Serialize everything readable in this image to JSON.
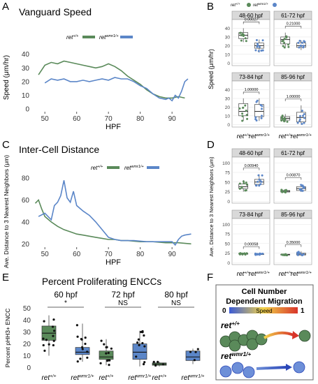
{
  "colors": {
    "wt": "#5a8a5a",
    "mut": "#5b86c8",
    "strip": "#d9d9d9",
    "grid": "#e6e6e6"
  },
  "panels": {
    "A": {
      "letter": "A",
      "title": "Vanguard Speed"
    },
    "B": {
      "letter": "B"
    },
    "C": {
      "letter": "C",
      "title": "Inter-Cell Distance"
    },
    "D": {
      "letter": "D"
    },
    "E": {
      "letter": "E",
      "title": "Percent Proliferating ENCCs"
    },
    "F": {
      "letter": "F",
      "title_line1": "Cell Number",
      "title_line2": "Dependent Migration",
      "speed_label": "Speed",
      "scale_min": "0",
      "scale_max": "1",
      "wt_label": "ret",
      "wt_sup": "+/+",
      "mut_label": "ret",
      "mut_sup": "wmr1/+"
    }
  },
  "legend": {
    "wt": "ret",
    "wt_sup": "+/+",
    "mut": "ret",
    "mut_sup": "wmr1/+"
  },
  "chart_data": [
    {
      "panel": "A",
      "type": "line",
      "title": "Vanguard Speed",
      "xlabel": "HPF",
      "ylabel": "Speed (μm/hr)",
      "xlim": [
        46,
        97
      ],
      "ylim": [
        -2,
        48
      ],
      "xticks": [
        50,
        60,
        70,
        80,
        90
      ],
      "yticks": [
        0,
        10,
        20,
        30,
        40
      ],
      "series": [
        {
          "name": "ret+/+",
          "color": "#5a8a5a",
          "x": [
            48,
            50,
            52,
            54,
            56,
            58,
            60,
            62,
            64,
            66,
            68,
            70,
            72,
            74,
            76,
            78,
            80,
            82,
            84,
            86,
            88,
            90,
            92,
            94
          ],
          "y": [
            25,
            32,
            34,
            33,
            35,
            34,
            33,
            32,
            31,
            30,
            31,
            33,
            31,
            28,
            24,
            21,
            18,
            14,
            11,
            9,
            8,
            8,
            9,
            8
          ]
        },
        {
          "name": "ret wmr1/+",
          "color": "#5b86c8",
          "x": [
            50,
            52,
            54,
            56,
            58,
            60,
            62,
            64,
            66,
            68,
            70,
            72,
            74,
            76,
            78,
            80,
            82,
            84,
            86,
            88,
            89,
            90,
            91,
            92,
            93,
            94,
            95
          ],
          "y": [
            19,
            22,
            21,
            22,
            20,
            20,
            21,
            20,
            21,
            22,
            21,
            23,
            22,
            22,
            20,
            17,
            15,
            11,
            8,
            7,
            8,
            6,
            10,
            8,
            13,
            20,
            22
          ]
        }
      ]
    },
    {
      "panel": "C",
      "type": "line",
      "title": "Inter-Cell Distance",
      "xlabel": "HPF",
      "ylabel": "Ave. Distance to 3 Nearest Neighbors (μm)",
      "xlim": [
        46,
        97
      ],
      "ylim": [
        17,
        82
      ],
      "xticks": [
        50,
        60,
        70,
        80,
        90
      ],
      "yticks": [
        20,
        40,
        60,
        80
      ],
      "series": [
        {
          "name": "ret+/+",
          "color": "#5a8a5a",
          "x": [
            47,
            48,
            49,
            50,
            52,
            54,
            56,
            58,
            60,
            62,
            64,
            66,
            68,
            70,
            72,
            74,
            76,
            80,
            84,
            88,
            92,
            96
          ],
          "y": [
            57,
            60,
            52,
            45,
            40,
            36,
            33,
            31,
            29,
            28,
            27,
            26,
            25,
            24,
            24,
            23,
            23,
            22,
            22,
            21,
            21,
            20
          ]
        },
        {
          "name": "ret wmr1/+",
          "color": "#5b86c8",
          "x": [
            48,
            50,
            52,
            53,
            54,
            55,
            56,
            57,
            58,
            59,
            60,
            62,
            64,
            66,
            68,
            70,
            72,
            74,
            78,
            82,
            86,
            90,
            91,
            92,
            93,
            94,
            96
          ],
          "y": [
            45,
            48,
            42,
            55,
            58,
            64,
            78,
            62,
            58,
            68,
            55,
            50,
            46,
            40,
            33,
            26,
            24,
            23,
            23,
            22,
            22,
            22,
            19,
            24,
            27,
            28,
            29
          ]
        }
      ]
    },
    {
      "panel": "B",
      "type": "box",
      "ylabel": "Speed (μm/hr)",
      "ylim": [
        -3,
        50
      ],
      "yticks": [
        0,
        10,
        20,
        30,
        40
      ],
      "categories": [
        "ret+/+",
        "retwmr1/+"
      ],
      "facets": [
        {
          "label": "48-60 hpf",
          "p": "0.00027",
          "boxes": [
            {
              "q1": 28,
              "med": 32,
              "q3": 35,
              "lo": 24,
              "hi": 40
            },
            {
              "q1": 17,
              "med": 20,
              "q3": 23,
              "lo": 12,
              "hi": 27
            }
          ]
        },
        {
          "label": "61-72 hpf",
          "p": "0.21000",
          "boxes": [
            {
              "q1": 22,
              "med": 27,
              "q3": 30,
              "lo": 17,
              "hi": 35
            },
            {
              "q1": 18,
              "med": 20,
              "q3": 23,
              "lo": 15,
              "hi": 26
            }
          ]
        },
        {
          "label": "73-84 hpf",
          "p": "1.00000",
          "boxes": [
            {
              "q1": 10,
              "med": 15,
              "q3": 24,
              "lo": 4,
              "hi": 30
            },
            {
              "q1": 9,
              "med": 15,
              "q3": 23,
              "lo": 4,
              "hi": 30
            }
          ]
        },
        {
          "label": "85-96 hpf",
          "p": "1.00000",
          "boxes": [
            {
              "q1": 5,
              "med": 7,
              "q3": 9,
              "lo": 3,
              "hi": 12
            },
            {
              "q1": 3,
              "med": 8,
              "q3": 14,
              "lo": 0,
              "hi": 22
            }
          ]
        }
      ]
    },
    {
      "panel": "D",
      "type": "box",
      "ylabel": "Ave. Distance to 3 Nearest Neighbors (μm)",
      "ylim": [
        -5,
        115
      ],
      "yticks": [
        0,
        25,
        50,
        75,
        100
      ],
      "categories": [
        "ret+/+",
        "retwmr1/+"
      ],
      "facets": [
        {
          "label": "48-60 hpf",
          "p": "0.00940",
          "boxes": [
            {
              "q1": 33,
              "med": 38,
              "q3": 45,
              "lo": 25,
              "hi": 55
            },
            {
              "q1": 44,
              "med": 50,
              "q3": 57,
              "lo": 38,
              "hi": 70
            }
          ]
        },
        {
          "label": "61-72 hpf",
          "p": "0.00870",
          "boxes": [
            {
              "q1": 24,
              "med": 26,
              "q3": 28,
              "lo": 22,
              "hi": 30
            },
            {
              "q1": 28,
              "med": 33,
              "q3": 38,
              "lo": 24,
              "hi": 45
            }
          ]
        },
        {
          "label": "73-84 hpf",
          "p": "0.00058",
          "boxes": [
            {
              "q1": 22,
              "med": 23,
              "q3": 24,
              "lo": 21,
              "hi": 25
            },
            {
              "q1": 21,
              "med": 22,
              "q3": 23,
              "lo": 20,
              "hi": 24
            }
          ]
        },
        {
          "label": "85-96 hpf",
          "p": "0.35000",
          "boxes": [
            {
              "q1": 20,
              "med": 21,
              "q3": 22,
              "lo": 19,
              "hi": 23
            },
            {
              "q1": 20,
              "med": 22,
              "q3": 25,
              "lo": 18,
              "hi": 30
            }
          ]
        }
      ]
    },
    {
      "panel": "E",
      "type": "box",
      "title": "Percent Proliferating ENCCs",
      "ylabel": "Percent pHH3+ ENCC",
      "ylim": [
        -2,
        52
      ],
      "yticks": [
        0,
        10,
        20,
        30,
        40,
        50
      ],
      "groups": [
        {
          "label": "60 hpf",
          "sig": "*",
          "boxes": [
            {
              "cat": "ret+/+",
              "q1": 23,
              "med": 29,
              "q3": 35,
              "lo": 10,
              "hi": 44
            },
            {
              "cat": "retwmr1/+",
              "q1": 11,
              "med": 13,
              "q3": 17,
              "lo": 5,
              "hi": 37
            }
          ]
        },
        {
          "label": "72 hpf",
          "sig": "NS",
          "boxes": [
            {
              "cat": "ret+/+",
              "q1": 7,
              "med": 9,
              "q3": 14,
              "lo": 2,
              "hi": 24
            },
            {
              "cat": "retwmr1/+",
              "q1": 7,
              "med": 13,
              "q3": 20,
              "lo": 1,
              "hi": 31
            }
          ]
        },
        {
          "label": "80 hpf",
          "sig": "NS",
          "boxes": [
            {
              "cat": "ret+/+",
              "q1": 2,
              "med": 3,
              "q3": 4,
              "lo": 1,
              "hi": 5
            },
            {
              "cat": "retwmr1/+",
              "q1": 6,
              "med": 9,
              "q3": 14,
              "lo": 3,
              "hi": 16
            }
          ]
        }
      ]
    }
  ]
}
